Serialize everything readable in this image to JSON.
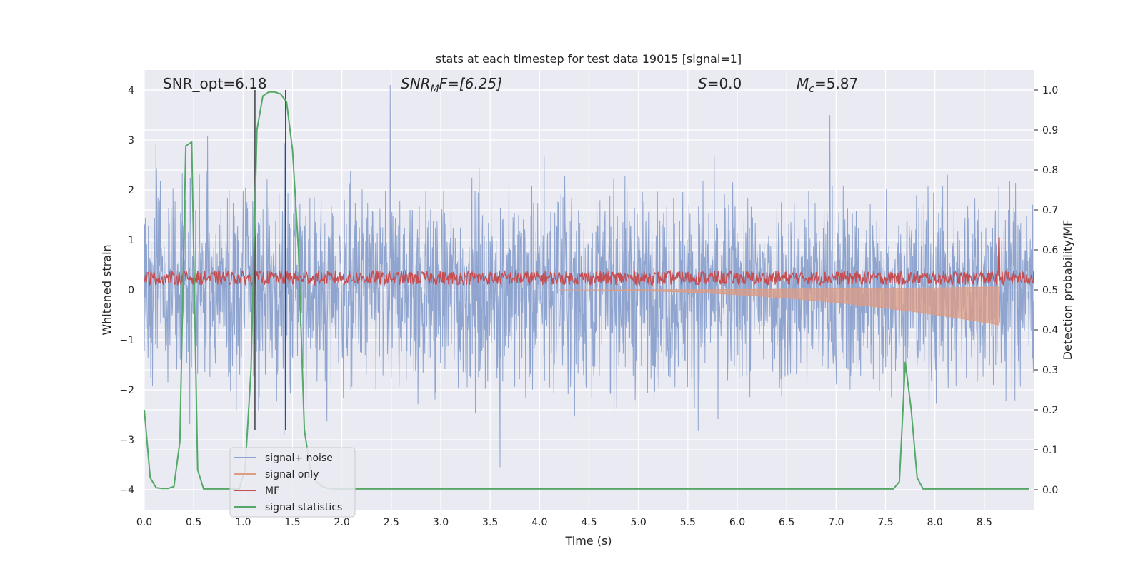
{
  "chart_data": {
    "type": "line",
    "title": "stats at each timestep for test data 19015 [signal=1]",
    "xlabel": "Time (s)",
    "ylabel_left": "Whitened strain",
    "ylabel_right": "Detection probability/MF",
    "xlim": [
      0.0,
      9.0
    ],
    "ylim_left": [
      -4.4,
      4.4
    ],
    "ylim_right": [
      -0.05,
      1.05
    ],
    "x_ticks": [
      "0.0",
      "0.5",
      "1.0",
      "1.5",
      "2.0",
      "2.5",
      "3.0",
      "3.5",
      "4.0",
      "4.5",
      "5.0",
      "5.5",
      "6.0",
      "6.5",
      "7.0",
      "7.5",
      "8.0",
      "8.5"
    ],
    "y_left_ticks": [
      "−4",
      "−3",
      "−2",
      "−1",
      "0",
      "1",
      "2",
      "3",
      "4"
    ],
    "y_right_ticks": [
      "0.0",
      "0.1",
      "0.2",
      "0.3",
      "0.4",
      "0.5",
      "0.6",
      "0.7",
      "0.8",
      "0.9",
      "1.0"
    ],
    "grid": true,
    "legend_position": "lower-left",
    "annotations": {
      "snr_opt": "SNR_opt=6.18",
      "snr_mf_base": "SNR",
      "snr_mf_sub": "M",
      "snr_mf_rest": "F=[6.25]",
      "s_var": "S",
      "s_rest": "=0.0",
      "mc_base": "M",
      "mc_sub": "c",
      "mc_rest": "=5.87"
    },
    "vertical_markers_s": [
      1.12,
      1.43
    ],
    "series": [
      {
        "name": "signal+ noise",
        "color": "#8fa5cf",
        "axis": "left",
        "description": "whitened strain noise, envelope approximately ±2 to ±3 around 0"
      },
      {
        "name": "signal only",
        "color": "#dd9c84",
        "axis": "left",
        "chirp_start_s": 4.2,
        "chirp_end_s": 8.65,
        "chirp_peak_amplitude": 0.7
      },
      {
        "name": "MF",
        "color": "#c44e52",
        "axis": "right",
        "baseline": 0.53,
        "peak_time_s": 8.65,
        "peak_value": 0.63
      },
      {
        "name": "signal statistics",
        "color": "#55a868",
        "axis": "right",
        "x": [
          0.0,
          0.06,
          0.12,
          0.18,
          0.24,
          0.3,
          0.36,
          0.42,
          0.48,
          0.54,
          0.6,
          0.66,
          0.72,
          0.78,
          0.84,
          0.9,
          0.96,
          1.02,
          1.08,
          1.14,
          1.2,
          1.26,
          1.32,
          1.38,
          1.44,
          1.5,
          1.56,
          1.62,
          1.68,
          1.74,
          1.8,
          1.86,
          1.92,
          1.98,
          2.04,
          2.1,
          2.2,
          3.0,
          4.0,
          5.0,
          6.0,
          7.0,
          7.5,
          7.58,
          7.64,
          7.7,
          7.76,
          7.82,
          7.88,
          7.94,
          8.0,
          8.5,
          8.95
        ],
        "y": [
          0.2,
          0.03,
          0.005,
          0.003,
          0.003,
          0.008,
          0.12,
          0.86,
          0.87,
          0.05,
          0.002,
          0.002,
          0.002,
          0.002,
          0.002,
          0.002,
          0.002,
          0.05,
          0.3,
          0.9,
          0.985,
          0.995,
          0.995,
          0.99,
          0.97,
          0.85,
          0.6,
          0.15,
          0.05,
          0.02,
          0.008,
          0.003,
          0.002,
          0.002,
          0.002,
          0.002,
          0.002,
          0.002,
          0.002,
          0.002,
          0.002,
          0.002,
          0.002,
          0.002,
          0.02,
          0.32,
          0.2,
          0.03,
          0.002,
          0.002,
          0.002,
          0.002,
          0.002
        ]
      }
    ]
  }
}
